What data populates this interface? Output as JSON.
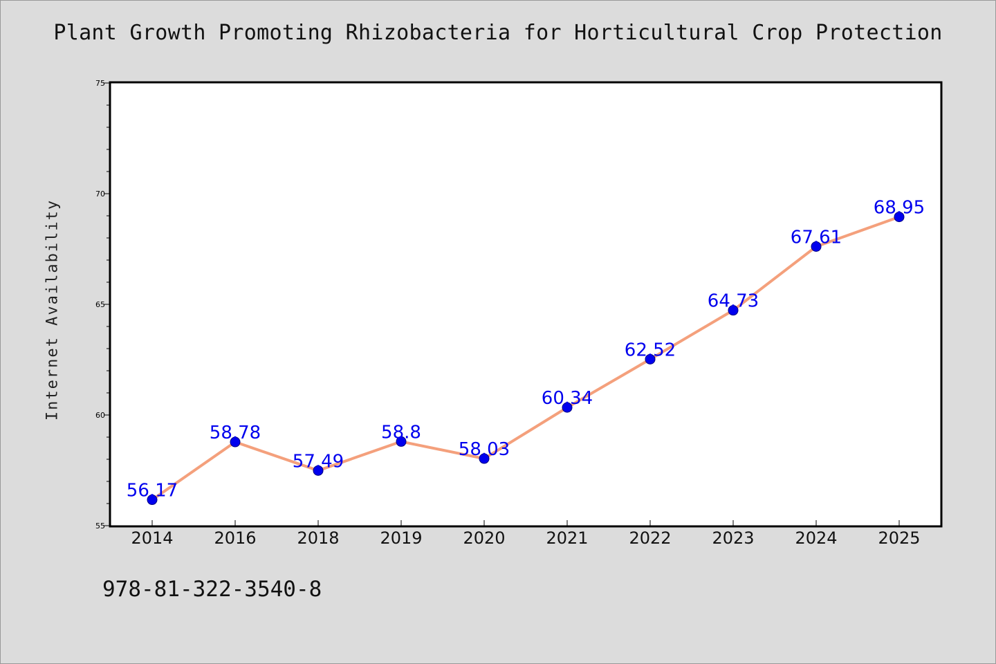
{
  "chart_data": {
    "type": "line",
    "title": "Plant Growth Promoting Rhizobacteria for Horticultural Crop Protection",
    "xlabel": "",
    "ylabel": "Internet Availability",
    "categories": [
      "2014",
      "2016",
      "2018",
      "2019",
      "2020",
      "2021",
      "2022",
      "2023",
      "2024",
      "2025"
    ],
    "series": [
      {
        "values": [
          56.17,
          58.78,
          57.49,
          58.8,
          58.03,
          60.34,
          62.52,
          64.73,
          67.61,
          68.95
        ],
        "data_labels": [
          "56.17",
          "58.78",
          "57.49",
          "58.8",
          "58.03",
          "60.34",
          "62.52",
          "64.73",
          "67.61",
          "68.95"
        ]
      }
    ],
    "ylim": [
      55,
      75
    ],
    "y_ticks": [
      "55",
      "60",
      "65",
      "70",
      "75"
    ],
    "grid": false,
    "legend": "none",
    "colors": {
      "line": "#f4a07c",
      "marker": "#0000ee",
      "data_label": "#0000ee",
      "background": "#dcdcdc",
      "plot_area": "#ffffff"
    }
  },
  "footer": {
    "isbn": "978-81-322-3540-8"
  }
}
